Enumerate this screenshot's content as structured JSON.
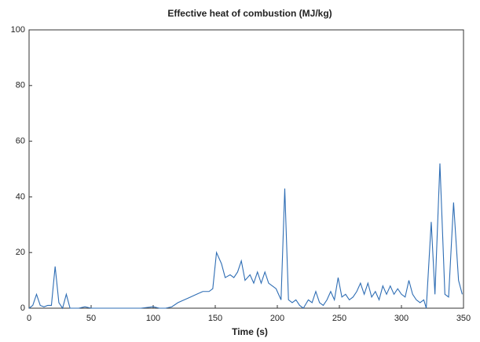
{
  "chart_data": {
    "type": "line",
    "title": "Effective heat of combustion (MJ/kg)",
    "x_label": "Time (s)",
    "x": [
      0,
      3,
      6,
      9,
      12,
      15,
      18,
      21,
      24,
      27,
      30,
      33,
      36,
      40,
      45,
      50,
      60,
      70,
      80,
      90,
      100,
      105,
      110,
      115,
      120,
      125,
      130,
      135,
      140,
      145,
      148,
      151,
      155,
      158,
      162,
      165,
      168,
      171,
      174,
      178,
      181,
      184,
      187,
      190,
      193,
      196,
      199,
      203,
      206,
      209,
      212,
      215,
      218,
      221,
      225,
      228,
      231,
      234,
      237,
      240,
      243,
      246,
      249,
      252,
      255,
      258,
      261,
      264,
      267,
      270,
      273,
      276,
      279,
      282,
      285,
      288,
      291,
      294,
      297,
      300,
      303,
      306,
      309,
      312,
      315,
      318,
      320,
      324,
      327,
      331,
      335,
      338,
      342,
      346,
      349
    ],
    "series": [
      {
        "name": "Effective heat of combustion",
        "color": "#2e6db4",
        "values": [
          0,
          1,
          5,
          1,
          0.5,
          1,
          1,
          15,
          2,
          0,
          5,
          0,
          0,
          0,
          0.5,
          0,
          0,
          0,
          0,
          0,
          0.5,
          0,
          0,
          0.5,
          2,
          3,
          4,
          5,
          6,
          6,
          7,
          20,
          16,
          11,
          12,
          11,
          13,
          17,
          10,
          12,
          9,
          13,
          9,
          13,
          9,
          8,
          7,
          3,
          43,
          3,
          2,
          3,
          1,
          0,
          3,
          2,
          6,
          2,
          1,
          3,
          6,
          3,
          11,
          4,
          5,
          3,
          4,
          6,
          9,
          5,
          9,
          4,
          6,
          3,
          8,
          5,
          8,
          5,
          7,
          5,
          4,
          10,
          5,
          3,
          2,
          3,
          0,
          31,
          5,
          52,
          5,
          4,
          38,
          10,
          5
        ]
      }
    ],
    "xlim": [
      0,
      350
    ],
    "xticks": [
      0,
      50,
      100,
      150,
      200,
      250,
      300,
      350
    ],
    "ylim": [
      0,
      100
    ],
    "yticks": [
      0,
      20,
      40,
      60,
      80,
      100
    ],
    "grid": false
  }
}
